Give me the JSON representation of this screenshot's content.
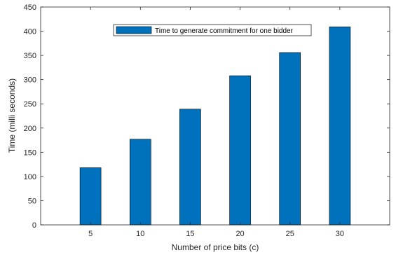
{
  "chart_data": {
    "type": "bar",
    "categories": [
      "5",
      "10",
      "15",
      "20",
      "25",
      "30"
    ],
    "series": [
      {
        "name": "Time to generate commitment for one bidder",
        "values": [
          118,
          177,
          239,
          308,
          356,
          409
        ]
      }
    ],
    "xlabel": "Number of price bits (c)",
    "ylabel": "Time (milli seconds)",
    "ylim": [
      0,
      450
    ],
    "yticks": [
      "0",
      "50",
      "100",
      "150",
      "200",
      "250",
      "300",
      "350",
      "400",
      "450"
    ],
    "grid": false,
    "legend_position": "top",
    "colors": {
      "bar": "#0072bd",
      "bar_edge": "#000000",
      "axis": "#262626"
    }
  }
}
